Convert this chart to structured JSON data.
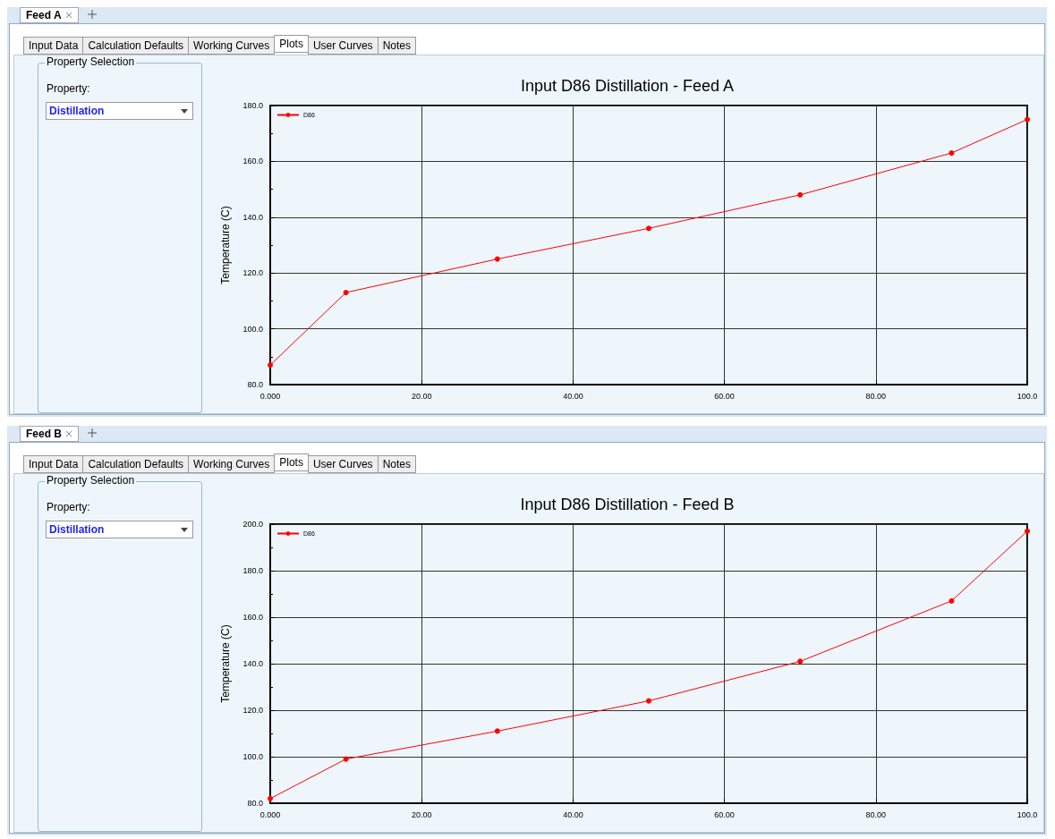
{
  "chart_data": [
    {
      "type": "line",
      "title": "Input D86 Distillation - Feed A",
      "ylabel": "Temperature (C)",
      "annotations": [
        "Feed A",
        "Input Data",
        "Calculation Defaults",
        "Working Curves",
        "Plots",
        "User Curves",
        "Notes",
        "Property Selection",
        "Property:",
        "Distillation"
      ],
      "x": [
        0,
        10,
        30,
        50,
        70,
        90,
        100
      ],
      "series": [
        {
          "name": "D86",
          "color": "#ff0000",
          "values": [
            87,
            113,
            125,
            136,
            148,
            163,
            175
          ]
        }
      ],
      "xlim": [
        0,
        100
      ],
      "xticks": [
        {
          "value": 0,
          "label": "0.000"
        },
        {
          "value": 20,
          "label": "20.00"
        },
        {
          "value": 40,
          "label": "40.00"
        },
        {
          "value": 60,
          "label": "60.00"
        },
        {
          "value": 80,
          "label": "80.00"
        },
        {
          "value": 100,
          "label": "100.0"
        }
      ],
      "ylim": [
        80,
        180
      ],
      "yticks": [
        {
          "value": 80,
          "label": "80.0"
        },
        {
          "value": 90,
          "label": null
        },
        {
          "value": 100,
          "label": "100.0"
        },
        {
          "value": 110,
          "label": null
        },
        {
          "value": 120,
          "label": "120.0"
        },
        {
          "value": 130,
          "label": null
        },
        {
          "value": 140,
          "label": "140.0"
        },
        {
          "value": 150,
          "label": null
        },
        {
          "value": 160,
          "label": "160.0"
        },
        {
          "value": 170,
          "label": null
        },
        {
          "value": 180,
          "label": "180.0"
        }
      ],
      "grid": true,
      "legend": "top left",
      "marker": "circle",
      "line_style": "solid"
    },
    {
      "type": "line",
      "title": "Input D86 Distillation - Feed B",
      "ylabel": "Temperature (C)",
      "annotations": [
        "Feed B",
        "Input Data",
        "Calculation Defaults",
        "Working Curves",
        "Plots",
        "User Curves",
        "Notes",
        "Property Selection",
        "Property:",
        "Distillation"
      ],
      "x": [
        0,
        10,
        30,
        50,
        70,
        90,
        100
      ],
      "series": [
        {
          "name": "D86",
          "color": "#ff0000",
          "values": [
            82,
            99,
            111,
            124,
            141,
            167,
            197
          ]
        }
      ],
      "xlim": [
        0,
        100
      ],
      "xticks": [
        {
          "value": 0,
          "label": "0.000"
        },
        {
          "value": 20,
          "label": "20.00"
        },
        {
          "value": 40,
          "label": "40.00"
        },
        {
          "value": 60,
          "label": "60.00"
        },
        {
          "value": 80,
          "label": "80.00"
        },
        {
          "value": 100,
          "label": "100.0"
        }
      ],
      "ylim": [
        80,
        200
      ],
      "yticks": [
        {
          "value": 80,
          "label": "80.0"
        },
        {
          "value": 90,
          "label": null
        },
        {
          "value": 100,
          "label": "100.0"
        },
        {
          "value": 110,
          "label": null
        },
        {
          "value": 120,
          "label": "120.0"
        },
        {
          "value": 130,
          "label": null
        },
        {
          "value": 140,
          "label": "140.0"
        },
        {
          "value": 150,
          "label": null
        },
        {
          "value": 160,
          "label": "160.0"
        },
        {
          "value": 170,
          "label": null
        },
        {
          "value": 180,
          "label": "180.0"
        },
        {
          "value": 190,
          "label": null
        },
        {
          "value": 200,
          "label": "200.0"
        }
      ],
      "grid": true,
      "legend": "top left",
      "marker": "circle",
      "line_style": "solid"
    }
  ]
}
